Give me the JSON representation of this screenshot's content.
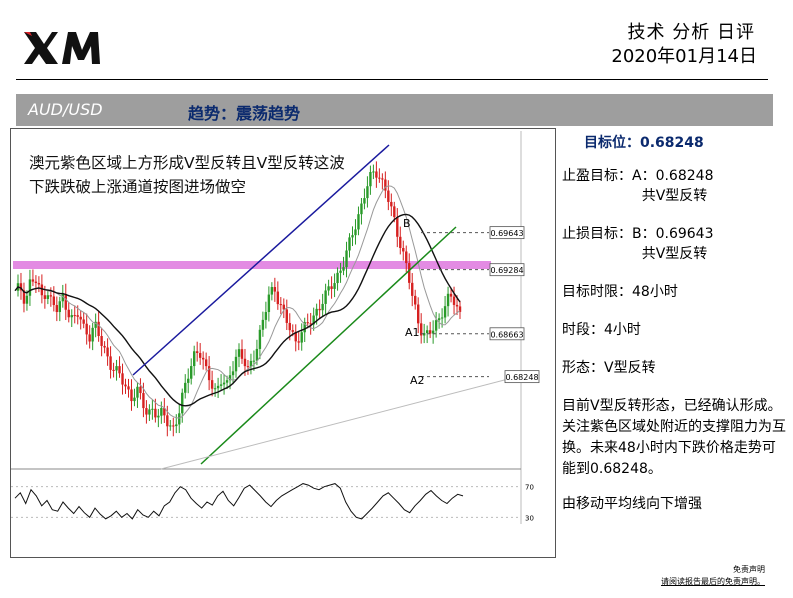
{
  "header": {
    "logo_text": "XM",
    "title": "技术 分析 日评",
    "date": "2020年01月14日"
  },
  "banner": {
    "pair": "AUD/USD",
    "trend": "趋势：震荡趋势"
  },
  "panel": {
    "target_label": "目标位：",
    "target_value": "0.68248",
    "take_profit": "止盈目标：A：0.68248",
    "take_profit_sub": "共V型反转",
    "stop_loss": "止损目标：B：0.69643",
    "stop_loss_sub": "共V型反转",
    "time_limit": "目标时限：48小时",
    "timeframe": "时段：4小时",
    "pattern": "形态：V型反转",
    "description": "目前V型反转形态，已经确认形成。关注紫色区域处附近的支撑阻力为互换。未来48小时内下跌价格走势可能到0.68248。",
    "ma_note": "由移动平均线向下增强"
  },
  "chart_data": {
    "type": "candlestick",
    "annotation": "澳元紫色区域上方形成V型反转且V型反转这波下跌跌破上涨通道按图进场做空",
    "price_levels": [
      {
        "label": "0.69643",
        "value": 0.69643
      },
      {
        "label": "0.69284",
        "value": 0.69284
      },
      {
        "label": "0.68663",
        "value": 0.68663
      },
      {
        "label": "0.68248",
        "value": 0.68248
      }
    ],
    "point_labels": [
      "B",
      "A1",
      "A2"
    ],
    "ylim": [
      0.6745,
      0.7055
    ],
    "close_series": [
      0.6905,
      0.6912,
      0.6898,
      0.692,
      0.6915,
      0.6902,
      0.691,
      0.6895,
      0.6888,
      0.6902,
      0.689,
      0.6878,
      0.6885,
      0.6872,
      0.6865,
      0.6875,
      0.686,
      0.685,
      0.6838,
      0.683,
      0.6822,
      0.6815,
      0.6805,
      0.6812,
      0.6798,
      0.679,
      0.6795,
      0.6785,
      0.6788,
      0.678,
      0.6775,
      0.679,
      0.6812,
      0.6835,
      0.685,
      0.6845,
      0.683,
      0.6822,
      0.681,
      0.682,
      0.6815,
      0.6835,
      0.685,
      0.684,
      0.683,
      0.6845,
      0.6862,
      0.688,
      0.6905,
      0.6912,
      0.6895,
      0.688,
      0.687,
      0.686,
      0.6868,
      0.6872,
      0.688,
      0.689,
      0.6898,
      0.6905,
      0.6915,
      0.6925,
      0.6935,
      0.695,
      0.6968,
      0.6985,
      0.7002,
      0.7015,
      0.7025,
      0.7018,
      0.7005,
      0.6985,
      0.6968,
      0.695,
      0.693,
      0.69,
      0.688,
      0.6868,
      0.6865,
      0.687,
      0.688,
      0.6895,
      0.6902,
      0.6895,
      0.6885
    ],
    "rsi_series": [
      55,
      62,
      48,
      66,
      58,
      45,
      52,
      40,
      38,
      50,
      42,
      35,
      44,
      36,
      30,
      42,
      34,
      28,
      32,
      38,
      30,
      35,
      28,
      40,
      33,
      30,
      38,
      32,
      45,
      50,
      62,
      70,
      66,
      55,
      48,
      42,
      50,
      46,
      58,
      64,
      52,
      45,
      56,
      68,
      72,
      65,
      58,
      50,
      44,
      52,
      58,
      62,
      66,
      70,
      74,
      72,
      68,
      66,
      70,
      72,
      74,
      68,
      50,
      38,
      30,
      28,
      35,
      42,
      50,
      58,
      62,
      55,
      48,
      40,
      36,
      45,
      52,
      60,
      65,
      58,
      52,
      48,
      55,
      60,
      58
    ],
    "rsi_ticks": [
      "70",
      "30"
    ]
  }
}
